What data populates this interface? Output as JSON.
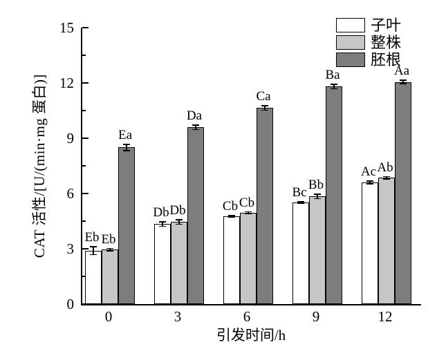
{
  "chart_data": {
    "type": "bar",
    "title": "",
    "xlabel": "引发时间/h",
    "ylabel": "CAT 活性/[U/(min·mg 蛋白)]",
    "categories": [
      "0",
      "3",
      "6",
      "9",
      "12"
    ],
    "ylim": [
      0,
      15
    ],
    "yticks": [
      0,
      3,
      6,
      9,
      12,
      15
    ],
    "minor_tick_start": 1.5,
    "minor_tick_step": 3,
    "grid": false,
    "legend_position": "top-right-inside",
    "bar_border_color": "#000000",
    "axis_color": "#000000",
    "series": [
      {
        "name": "子叶",
        "color": "#ffffff",
        "values": [
          2.9,
          4.35,
          4.75,
          5.5,
          6.6
        ],
        "errors": [
          0.25,
          0.15,
          0.08,
          0.08,
          0.1
        ],
        "sig_labels": [
          "Eb",
          "Db",
          "Cb",
          "Bc",
          "Ac"
        ]
      },
      {
        "name": "整株",
        "color": "#c6c6c6",
        "values": [
          2.95,
          4.45,
          4.95,
          5.85,
          6.85
        ],
        "errors": [
          0.1,
          0.15,
          0.08,
          0.15,
          0.1
        ],
        "sig_labels": [
          "Eb",
          "Db",
          "Cb",
          "Bb",
          "Ab"
        ]
      },
      {
        "name": "胚根",
        "color": "#7d7d7d",
        "values": [
          8.5,
          9.6,
          10.65,
          11.8,
          12.05
        ],
        "errors": [
          0.2,
          0.15,
          0.15,
          0.15,
          0.12
        ],
        "sig_labels": [
          "Ea",
          "Da",
          "Ca",
          "Ba",
          "Aa"
        ]
      }
    ]
  }
}
